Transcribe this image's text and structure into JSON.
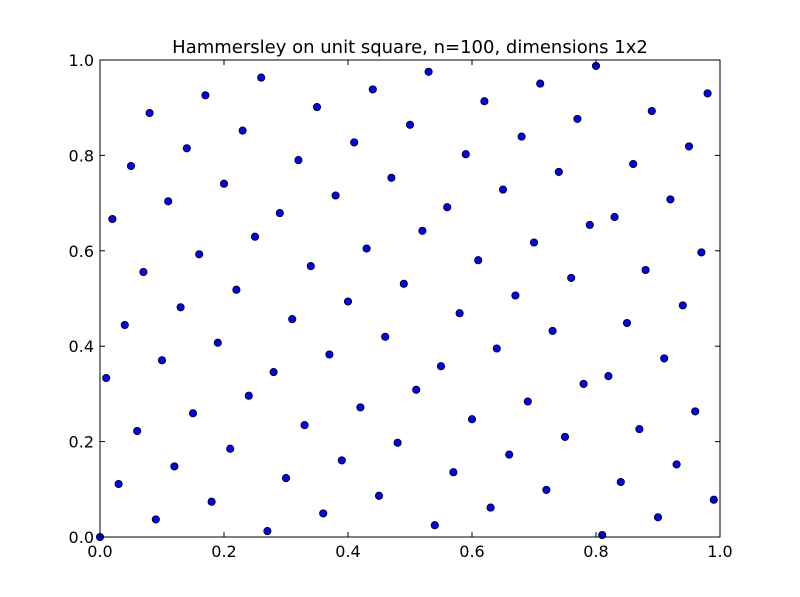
{
  "chart_data": {
    "type": "scatter",
    "title": "Hammersley on unit square, n=100, dimensions 1x2",
    "xlabel": "",
    "ylabel": "",
    "xlim": [
      0.0,
      1.0
    ],
    "ylim": [
      0.0,
      1.0
    ],
    "xticks": [
      "0.0",
      "0.2",
      "0.4",
      "0.6",
      "0.8",
      "1.0"
    ],
    "yticks": [
      "0.0",
      "0.2",
      "0.4",
      "0.6",
      "0.8",
      "1.0"
    ],
    "grid": false,
    "legend": "none",
    "marker_color": "#0000ff",
    "series": [
      {
        "x": [
          0.0,
          0.01,
          0.02,
          0.03,
          0.04,
          0.05,
          0.06,
          0.07,
          0.08,
          0.09,
          0.1,
          0.11,
          0.12,
          0.13,
          0.14,
          0.15,
          0.16,
          0.17,
          0.18,
          0.19,
          0.2,
          0.21,
          0.22,
          0.23,
          0.24,
          0.25,
          0.26,
          0.27,
          0.28,
          0.29,
          0.3,
          0.31,
          0.32,
          0.33,
          0.34,
          0.35,
          0.36,
          0.37,
          0.38,
          0.39,
          0.4,
          0.41,
          0.42,
          0.43,
          0.44,
          0.45,
          0.46,
          0.47,
          0.48,
          0.49,
          0.5,
          0.51,
          0.52,
          0.53,
          0.54,
          0.55,
          0.56,
          0.57,
          0.58,
          0.59,
          0.6,
          0.61,
          0.62,
          0.63,
          0.64,
          0.65,
          0.66,
          0.67,
          0.68,
          0.69,
          0.7,
          0.71,
          0.72,
          0.73,
          0.74,
          0.75,
          0.76,
          0.77,
          0.78,
          0.79,
          0.8,
          0.81,
          0.82,
          0.83,
          0.84,
          0.85,
          0.86,
          0.87,
          0.88,
          0.89,
          0.9,
          0.91,
          0.92,
          0.93,
          0.94,
          0.95,
          0.96,
          0.97,
          0.98,
          0.99
        ],
        "y": [
          0.0,
          0.3333,
          0.6667,
          0.1111,
          0.4444,
          0.7778,
          0.2222,
          0.5556,
          0.8889,
          0.037,
          0.3704,
          0.7037,
          0.1481,
          0.4815,
          0.8148,
          0.2593,
          0.5926,
          0.9259,
          0.0741,
          0.4074,
          0.7407,
          0.1852,
          0.5185,
          0.8519,
          0.2963,
          0.6296,
          0.963,
          0.0123,
          0.3457,
          0.679,
          0.1235,
          0.4568,
          0.7901,
          0.2346,
          0.5679,
          0.9012,
          0.0494,
          0.3827,
          0.716,
          0.1605,
          0.4938,
          0.8272,
          0.2716,
          0.6049,
          0.9383,
          0.0864,
          0.4198,
          0.7531,
          0.1975,
          0.5309,
          0.8642,
          0.3086,
          0.642,
          0.9753,
          0.0247,
          0.358,
          0.6914,
          0.1358,
          0.4691,
          0.8025,
          0.2469,
          0.5802,
          0.9136,
          0.0617,
          0.3951,
          0.7284,
          0.1728,
          0.5062,
          0.8395,
          0.284,
          0.6173,
          0.9506,
          0.0988,
          0.4321,
          0.7654,
          0.2099,
          0.5432,
          0.8765,
          0.321,
          0.6543,
          0.9877,
          0.0041,
          0.3374,
          0.6708,
          0.1152,
          0.4486,
          0.7819,
          0.2263,
          0.5597,
          0.893,
          0.0412,
          0.3745,
          0.7078,
          0.1523,
          0.4856,
          0.8189,
          0.2634,
          0.5967,
          0.93,
          0.0782
        ]
      }
    ]
  }
}
